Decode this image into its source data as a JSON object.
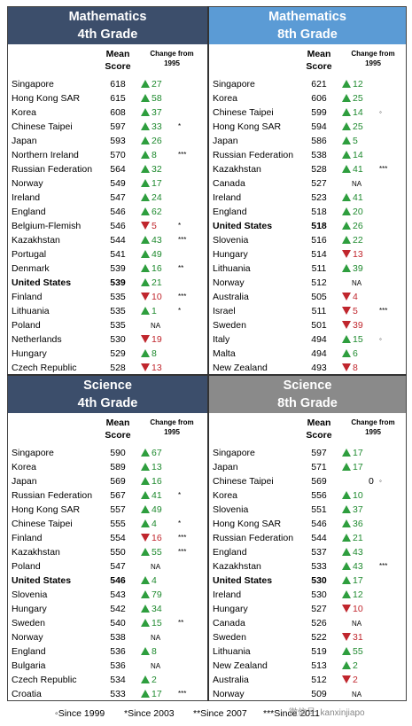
{
  "header_labels": {
    "mean_score": "Mean Score",
    "mean_line1": "Mean",
    "mean_line2": "Score",
    "change_line1": "Change from",
    "change_line2": "1995"
  },
  "colors": {
    "up": "#2e9e3e",
    "down": "#c0262d",
    "math4": "#3c4e6b",
    "math8": "#5b9bd5",
    "sci4": "#3c4e6b",
    "sci8": "#8a8a8a"
  },
  "na_text": "NA",
  "footer": {
    "since1999": "◦Since 1999",
    "since2003": "*Since 2003",
    "since2007": "**Since 2007",
    "since2011": "***Since 2011"
  },
  "watermark": "微信号: kanxinjiapo",
  "chart_data": [
    {
      "type": "table",
      "title_line1": "Mathematics",
      "title_line2": "4th Grade",
      "rows": [
        {
          "country": "Singapore",
          "score": 618,
          "change": 27,
          "mark": ""
        },
        {
          "country": "Hong Kong SAR",
          "score": 615,
          "change": 58,
          "mark": ""
        },
        {
          "country": "Korea",
          "score": 608,
          "change": 37,
          "mark": ""
        },
        {
          "country": "Chinese Taipei",
          "score": 597,
          "change": 33,
          "mark": "*"
        },
        {
          "country": "Japan",
          "score": 593,
          "change": 26,
          "mark": ""
        },
        {
          "country": "Northern Ireland",
          "score": 570,
          "change": 8,
          "mark": "***"
        },
        {
          "country": "Russian Federation",
          "score": 564,
          "change": 32,
          "mark": ""
        },
        {
          "country": "Norway",
          "score": 549,
          "change": 17,
          "mark": ""
        },
        {
          "country": "Ireland",
          "score": 547,
          "change": 24,
          "mark": ""
        },
        {
          "country": "England",
          "score": 546,
          "change": 62,
          "mark": ""
        },
        {
          "country": "Belgium-Flemish",
          "score": 546,
          "change": -5,
          "mark": "*"
        },
        {
          "country": "Kazakhstan",
          "score": 544,
          "change": 43,
          "mark": "***"
        },
        {
          "country": "Portugal",
          "score": 541,
          "change": 49,
          "mark": ""
        },
        {
          "country": "Denmark",
          "score": 539,
          "change": 16,
          "mark": "**"
        },
        {
          "country": "United States",
          "score": 539,
          "change": 21,
          "mark": "",
          "bold": true
        },
        {
          "country": "Finland",
          "score": 535,
          "change": -10,
          "mark": "***"
        },
        {
          "country": "Lithuania",
          "score": 535,
          "change": 1,
          "mark": "*"
        },
        {
          "country": "Poland",
          "score": 535,
          "change": null,
          "mark": ""
        },
        {
          "country": "Netherlands",
          "score": 530,
          "change": -19,
          "mark": ""
        },
        {
          "country": "Hungary",
          "score": 529,
          "change": 8,
          "mark": ""
        },
        {
          "country": "Czech Republic",
          "score": 528,
          "change": -13,
          "mark": ""
        }
      ]
    },
    {
      "type": "table",
      "title_line1": "Mathematics",
      "title_line2": "8th Grade",
      "rows": [
        {
          "country": "Singapore",
          "score": 621,
          "change": 12,
          "mark": ""
        },
        {
          "country": "Korea",
          "score": 606,
          "change": 25,
          "mark": ""
        },
        {
          "country": "Chinese Taipei",
          "score": 599,
          "change": 14,
          "mark": "◦"
        },
        {
          "country": "Hong Kong SAR",
          "score": 594,
          "change": 25,
          "mark": ""
        },
        {
          "country": "Japan",
          "score": 586,
          "change": 5,
          "mark": ""
        },
        {
          "country": "Russian Federation",
          "score": 538,
          "change": 14,
          "mark": ""
        },
        {
          "country": "Kazakhstan",
          "score": 528,
          "change": 41,
          "mark": "***"
        },
        {
          "country": "Canada",
          "score": 527,
          "change": null,
          "mark": ""
        },
        {
          "country": "Ireland",
          "score": 523,
          "change": 41,
          "mark": ""
        },
        {
          "country": "England",
          "score": 518,
          "change": 20,
          "mark": ""
        },
        {
          "country": "United States",
          "score": 518,
          "change": 26,
          "mark": "",
          "bold": true
        },
        {
          "country": "Slovenia",
          "score": 516,
          "change": 22,
          "mark": ""
        },
        {
          "country": "Hungary",
          "score": 514,
          "change": -13,
          "mark": ""
        },
        {
          "country": "Lithuania",
          "score": 511,
          "change": 39,
          "mark": ""
        },
        {
          "country": "Norway",
          "score": 512,
          "change": null,
          "mark": ""
        },
        {
          "country": "Australia",
          "score": 505,
          "change": -4,
          "mark": ""
        },
        {
          "country": "Israel",
          "score": 511,
          "change": -5,
          "mark": "***"
        },
        {
          "country": "Sweden",
          "score": 501,
          "change": -39,
          "mark": ""
        },
        {
          "country": "Italy",
          "score": 494,
          "change": 15,
          "mark": "◦"
        },
        {
          "country": "Malta",
          "score": 494,
          "change": 6,
          "mark": ""
        },
        {
          "country": "New Zealand",
          "score": 493,
          "change": -8,
          "mark": ""
        }
      ]
    },
    {
      "type": "table",
      "title_line1": "Science",
      "title_line2": "4th Grade",
      "rows": [
        {
          "country": "Singapore",
          "score": 590,
          "change": 67,
          "mark": ""
        },
        {
          "country": "Korea",
          "score": 589,
          "change": 13,
          "mark": ""
        },
        {
          "country": "Japan",
          "score": 569,
          "change": 16,
          "mark": ""
        },
        {
          "country": "Russian Federation",
          "score": 567,
          "change": 41,
          "mark": "*"
        },
        {
          "country": "Hong Kong SAR",
          "score": 557,
          "change": 49,
          "mark": ""
        },
        {
          "country": "Chinese Taipei",
          "score": 555,
          "change": 4,
          "mark": "*"
        },
        {
          "country": "Finland",
          "score": 554,
          "change": -16,
          "mark": "***"
        },
        {
          "country": "Kazakhstan",
          "score": 550,
          "change": 55,
          "mark": "***"
        },
        {
          "country": "Poland",
          "score": 547,
          "change": null,
          "mark": ""
        },
        {
          "country": "United States",
          "score": 546,
          "change": 4,
          "mark": "",
          "bold": true
        },
        {
          "country": "Slovenia",
          "score": 543,
          "change": 79,
          "mark": ""
        },
        {
          "country": "Hungary",
          "score": 542,
          "change": 34,
          "mark": ""
        },
        {
          "country": "Sweden",
          "score": 540,
          "change": 15,
          "mark": "**"
        },
        {
          "country": "Norway",
          "score": 538,
          "change": null,
          "mark": ""
        },
        {
          "country": "England",
          "score": 536,
          "change": 8,
          "mark": ""
        },
        {
          "country": "Bulgaria",
          "score": 536,
          "change": null,
          "mark": ""
        },
        {
          "country": "Czech Republic",
          "score": 534,
          "change": 2,
          "mark": ""
        },
        {
          "country": "Croatia",
          "score": 533,
          "change": 17,
          "mark": "***"
        }
      ]
    },
    {
      "type": "table",
      "title_line1": "Science",
      "title_line2": "8th Grade",
      "rows": [
        {
          "country": "Singapore",
          "score": 597,
          "change": 17,
          "mark": ""
        },
        {
          "country": "Japan",
          "score": 571,
          "change": 17,
          "mark": ""
        },
        {
          "country": "Chinese Taipei",
          "score": 569,
          "change": 0,
          "mark": "◦"
        },
        {
          "country": "Korea",
          "score": 556,
          "change": 10,
          "mark": ""
        },
        {
          "country": "Slovenia",
          "score": 551,
          "change": 37,
          "mark": ""
        },
        {
          "country": "Hong Kong SAR",
          "score": 546,
          "change": 36,
          "mark": ""
        },
        {
          "country": "Russian Federation",
          "score": 544,
          "change": 21,
          "mark": ""
        },
        {
          "country": "England",
          "score": 537,
          "change": 43,
          "mark": ""
        },
        {
          "country": "Kazakhstan",
          "score": 533,
          "change": 43,
          "mark": "***"
        },
        {
          "country": "United States",
          "score": 530,
          "change": 17,
          "mark": "",
          "bold": true
        },
        {
          "country": "Ireland",
          "score": 530,
          "change": 12,
          "mark": ""
        },
        {
          "country": "Hungary",
          "score": 527,
          "change": -10,
          "mark": ""
        },
        {
          "country": "Canada",
          "score": 526,
          "change": null,
          "mark": ""
        },
        {
          "country": "Sweden",
          "score": 522,
          "change": -31,
          "mark": ""
        },
        {
          "country": "Lithuania",
          "score": 519,
          "change": 55,
          "mark": ""
        },
        {
          "country": "New Zealand",
          "score": 513,
          "change": 2,
          "mark": ""
        },
        {
          "country": "Australia",
          "score": 512,
          "change": -2,
          "mark": ""
        },
        {
          "country": "Norway",
          "score": 509,
          "change": null,
          "mark": ""
        }
      ]
    }
  ]
}
